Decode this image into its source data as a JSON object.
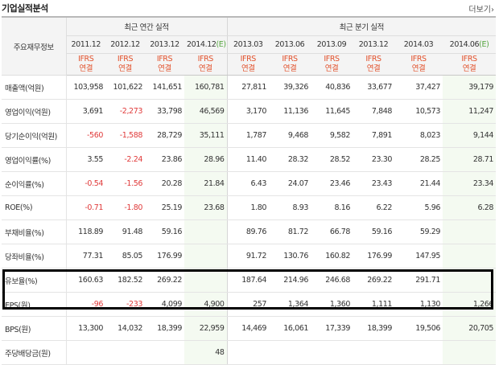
{
  "header": {
    "title": "기업실적분석",
    "more_label": "더보기›"
  },
  "table": {
    "corner_label": "주요재무정보",
    "groups": {
      "annual": "최근 연간 실적",
      "quarterly": "최근 분기 실적"
    },
    "periods": [
      "2011.12",
      "2012.12",
      "2013.12",
      "2014.12(E)",
      "2013.03",
      "2013.06",
      "2013.09",
      "2013.12",
      "2014.03",
      "2014.06(E)"
    ],
    "ifrs_line1": "IFRS",
    "ifrs_line2": "연결",
    "rows": [
      {
        "label": "매출액(억원)",
        "values": [
          "103,958",
          "101,622",
          "141,651",
          "160,781",
          "27,811",
          "39,326",
          "40,836",
          "33,677",
          "37,427",
          "39,179"
        ]
      },
      {
        "label": "영업이익(억원)",
        "values": [
          "3,691",
          "-2,273",
          "33,798",
          "46,569",
          "3,170",
          "11,136",
          "11,645",
          "7,848",
          "10,573",
          "11,247"
        ]
      },
      {
        "label": "당기순이익(억원)",
        "values": [
          "-560",
          "-1,588",
          "28,729",
          "35,111",
          "1,787",
          "9,468",
          "9,582",
          "7,891",
          "8,023",
          "9,144"
        ]
      },
      {
        "label": "영업이익률(%)",
        "values": [
          "3.55",
          "-2.24",
          "23.86",
          "28.96",
          "11.40",
          "28.32",
          "28.52",
          "23.30",
          "28.25",
          "28.71"
        ]
      },
      {
        "label": "순이익률(%)",
        "values": [
          "-0.54",
          "-1.56",
          "20.28",
          "21.84",
          "6.43",
          "24.07",
          "23.46",
          "23.43",
          "21.44",
          "23.34"
        ]
      },
      {
        "label": "ROE(%)",
        "values": [
          "-0.71",
          "-1.80",
          "25.19",
          "23.68",
          "1.80",
          "8.93",
          "8.16",
          "6.22",
          "5.96",
          "6.28"
        ]
      },
      {
        "label": "부채비율(%)",
        "values": [
          "118.89",
          "91.48",
          "59.16",
          "",
          "89.76",
          "81.72",
          "66.78",
          "59.16",
          "59.29",
          ""
        ]
      },
      {
        "label": "당좌비율(%)",
        "values": [
          "77.31",
          "85.05",
          "176.99",
          "",
          "91.72",
          "130.76",
          "160.82",
          "176.99",
          "147.95",
          ""
        ]
      },
      {
        "label": "유보율(%)",
        "values": [
          "160.63",
          "182.52",
          "269.22",
          "",
          "187.64",
          "214.96",
          "246.68",
          "269.22",
          "291.71",
          ""
        ]
      },
      {
        "label": "EPS(원)",
        "values": [
          "-96",
          "-233",
          "4,099",
          "4,900",
          "257",
          "1,364",
          "1,360",
          "1,111",
          "1,130",
          "1,266"
        ]
      },
      {
        "label": "BPS(원)",
        "values": [
          "13,300",
          "14,032",
          "18,399",
          "22,959",
          "14,469",
          "16,061",
          "17,339",
          "18,399",
          "19,506",
          "20,705"
        ]
      },
      {
        "label": "주당배당금(원)",
        "values": [
          "",
          "",
          "",
          "48",
          "",
          "",
          "",
          "",
          "",
          ""
        ]
      }
    ]
  },
  "colors": {
    "negative": "#e03a3a",
    "ifrs": "#e2522d",
    "estimate_paren": "#57a641",
    "estimate_bg": "#f4faf1"
  }
}
